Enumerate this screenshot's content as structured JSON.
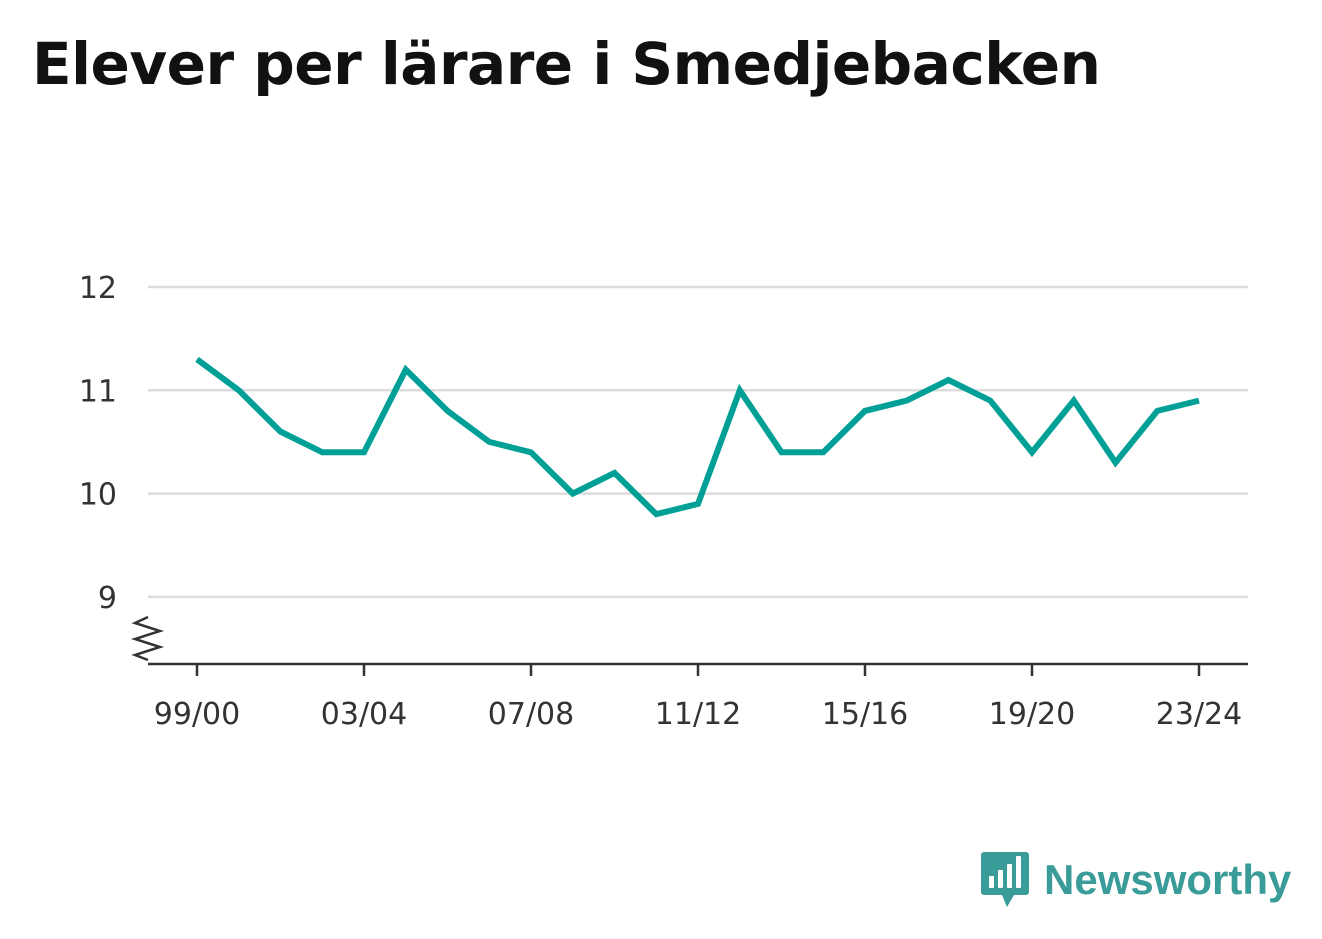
{
  "chart_data": {
    "type": "line",
    "title": "Elever per lärare i Smedjebacken",
    "x": [
      "99/00",
      "00/01",
      "01/02",
      "02/03",
      "03/04",
      "04/05",
      "05/06",
      "06/07",
      "07/08",
      "08/09",
      "09/10",
      "10/11",
      "11/12",
      "12/13",
      "13/14",
      "14/15",
      "15/16",
      "16/17",
      "17/18",
      "18/19",
      "19/20",
      "20/21",
      "21/22",
      "22/23",
      "23/24"
    ],
    "series": [
      {
        "values": [
          11.3,
          11.0,
          10.6,
          10.4,
          10.4,
          11.2,
          10.8,
          10.5,
          10.4,
          10.0,
          10.2,
          9.8,
          9.9,
          11.0,
          10.4,
          10.4,
          10.8,
          10.9,
          11.1,
          10.9,
          10.4,
          10.9,
          10.3,
          10.8,
          10.9
        ]
      }
    ],
    "x_tick_labels": [
      "99/00",
      "03/04",
      "07/08",
      "11/12",
      "15/16",
      "19/20",
      "23/24"
    ],
    "y_ticks": [
      9,
      10,
      11,
      12
    ],
    "ylim": [
      8.35,
      12
    ],
    "axis_break": true,
    "grid": true,
    "xlabel": "",
    "ylabel": "",
    "line_color": "#00a096"
  },
  "logo": {
    "text": "Newsworthy",
    "icon": "newsworthy-chart-bubble-icon",
    "color": "#3a9c98"
  }
}
